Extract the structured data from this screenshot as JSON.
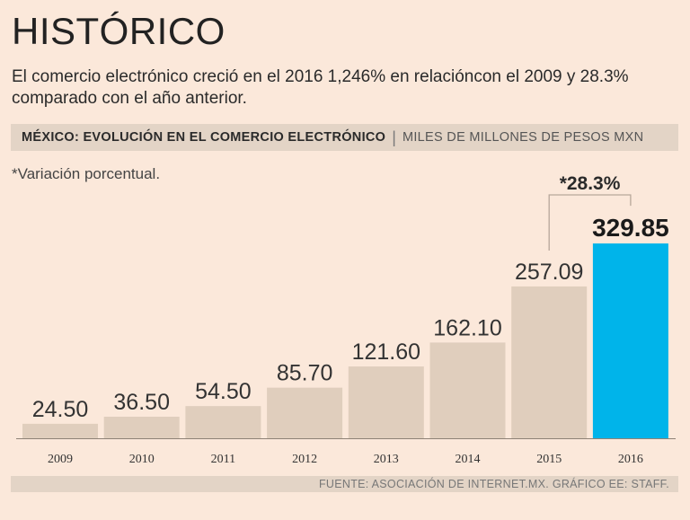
{
  "header": {
    "title": "HISTÓRICO",
    "subtitle": "El comercio electrónico creció en el 2016 1,246% en relacióncon el 2009 y 28.3% comparado con el año anterior."
  },
  "chart_header": {
    "main": "MÉXICO: EVOLUCIÓN EN EL COMERCIO ELECTRÓNICO",
    "separator": "|",
    "unit": "MILES DE MILLONES DE PESOS MXN"
  },
  "note": "*Variación porcentual.",
  "footer": {
    "source": "FUENTE: ASOCIACIÓN DE INTERNET.MX.   GRÁFICO EE: STAFF."
  },
  "colors": {
    "bar": "#e0cebd",
    "highlight_bar": "#00b4ea",
    "annotation_line": "#b7a79a"
  },
  "chart_data": {
    "type": "bar",
    "title": "MÉXICO: EVOLUCIÓN EN EL COMERCIO ELECTRÓNICO",
    "ylabel": "MILES DE MILLONES DE PESOS MXN",
    "xlabel": "",
    "categories": [
      "2009",
      "2010",
      "2011",
      "2012",
      "2013",
      "2014",
      "2015",
      "2016"
    ],
    "values": [
      24.5,
      36.5,
      54.5,
      85.7,
      121.6,
      162.1,
      257.09,
      329.85
    ],
    "value_labels": [
      "24.50",
      "36.50",
      "54.50",
      "85.70",
      "121.60",
      "162.10",
      "257.09",
      "329.85"
    ],
    "ylim": [
      0,
      330
    ],
    "grid": false,
    "highlight_index": 7,
    "annotation": {
      "from_index": 6,
      "to_index": 7,
      "label": "*28.3%"
    }
  }
}
